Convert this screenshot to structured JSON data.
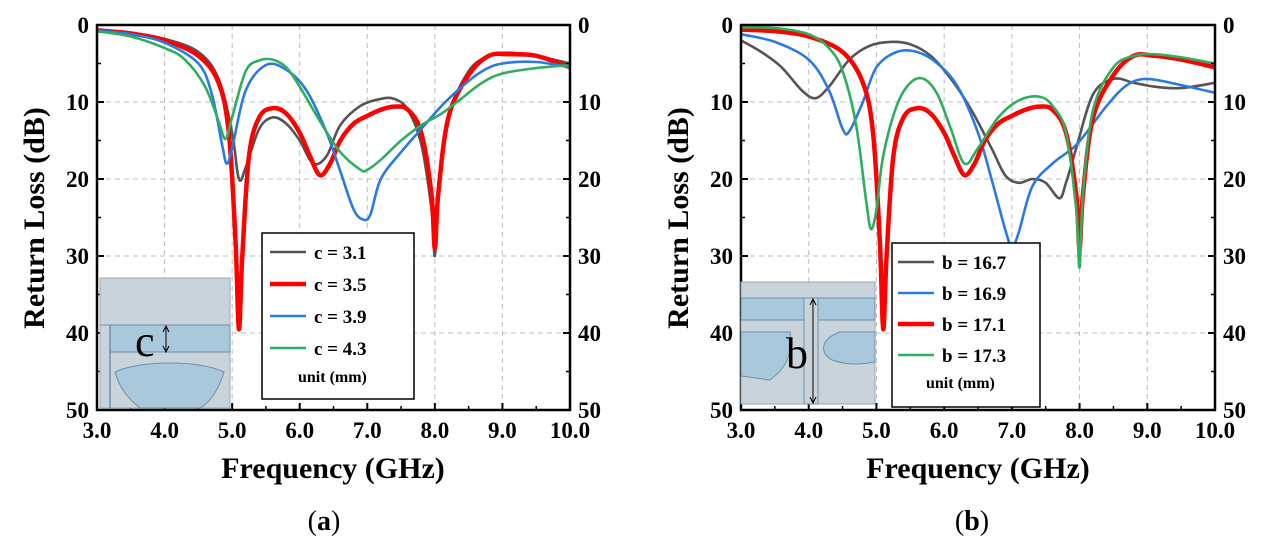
{
  "chart_data": [
    {
      "type": "line",
      "panel_label": "a",
      "xlabel": "Frequency (GHz)",
      "ylabel": "Return Loss (dB)",
      "xlim": [
        3.0,
        10.0
      ],
      "ylim": [
        0,
        50
      ],
      "y_inverted": true,
      "x_ticks": [
        "3.0",
        "4.0",
        "5.0",
        "6.0",
        "7.0",
        "8.0",
        "9.0",
        "10.0"
      ],
      "y_ticks": [
        "0",
        "10",
        "20",
        "30",
        "40",
        "50"
      ],
      "grid": true,
      "legend_position": "center-right",
      "legend_unit": "unit (mm)",
      "inset_label": "c",
      "series": [
        {
          "name": "c = 3.1",
          "color": "#555555",
          "x": [
            3.0,
            3.5,
            4.0,
            4.5,
            4.8,
            5.0,
            5.1,
            5.2,
            5.4,
            5.6,
            5.8,
            6.0,
            6.2,
            6.4,
            6.6,
            6.9,
            7.2,
            7.4,
            7.6,
            7.8,
            7.95,
            8.0,
            8.05,
            8.2,
            8.5,
            8.8,
            9.1,
            9.5,
            10.0
          ],
          "y": [
            0.6,
            1.0,
            1.8,
            3.5,
            7.0,
            14.0,
            20.0,
            18.5,
            13.5,
            12.0,
            12.8,
            15.0,
            18.0,
            17.0,
            13.0,
            10.5,
            9.6,
            9.6,
            11.0,
            15.5,
            24.0,
            30.0,
            22.0,
            12.0,
            6.0,
            4.0,
            3.6,
            4.0,
            5.0
          ]
        },
        {
          "name": "c = 3.5",
          "color": "#ff0000",
          "x": [
            3.0,
            3.5,
            4.0,
            4.5,
            4.8,
            4.95,
            5.05,
            5.1,
            5.15,
            5.25,
            5.4,
            5.6,
            5.8,
            6.0,
            6.15,
            6.3,
            6.45,
            6.6,
            6.8,
            7.0,
            7.2,
            7.4,
            7.6,
            7.8,
            7.95,
            8.0,
            8.05,
            8.2,
            8.5,
            8.8,
            9.1,
            9.5,
            10.0
          ],
          "y": [
            0.7,
            1.1,
            2.0,
            4.0,
            7.5,
            14.0,
            28.0,
            39.5,
            30.0,
            17.0,
            12.0,
            10.8,
            11.5,
            14.0,
            17.0,
            19.5,
            18.0,
            15.0,
            12.8,
            11.8,
            11.0,
            10.6,
            11.0,
            14.0,
            22.0,
            29.0,
            22.0,
            12.0,
            6.5,
            4.0,
            3.8,
            4.0,
            5.5
          ]
        },
        {
          "name": "c = 3.9",
          "color": "#2a7ae2",
          "x": [
            3.0,
            3.5,
            4.0,
            4.5,
            4.7,
            4.85,
            4.92,
            5.0,
            5.2,
            5.5,
            5.8,
            6.1,
            6.4,
            6.6,
            6.8,
            6.95,
            7.05,
            7.2,
            7.5,
            7.8,
            8.1,
            8.4,
            8.7,
            9.0,
            9.5,
            10.0
          ],
          "y": [
            0.7,
            1.2,
            2.3,
            5.0,
            9.0,
            15.5,
            18.0,
            16.0,
            8.5,
            5.2,
            5.8,
            8.5,
            14.0,
            19.0,
            24.0,
            25.3,
            24.5,
            20.0,
            16.5,
            13.5,
            10.5,
            8.0,
            6.0,
            5.0,
            4.8,
            5.5
          ]
        },
        {
          "name": "c = 4.3",
          "color": "#2fae5f",
          "x": [
            3.0,
            3.5,
            4.0,
            4.3,
            4.6,
            4.8,
            4.9,
            5.0,
            5.2,
            5.4,
            5.6,
            5.8,
            6.0,
            6.3,
            6.6,
            6.9,
            7.0,
            7.2,
            7.5,
            7.8,
            8.1,
            8.4,
            8.7,
            9.0,
            9.5,
            10.0
          ],
          "y": [
            0.8,
            1.5,
            3.0,
            4.5,
            8.0,
            12.5,
            14.8,
            12.0,
            6.0,
            4.6,
            4.5,
            5.5,
            8.0,
            12.5,
            16.5,
            18.8,
            18.8,
            17.5,
            15.0,
            13.0,
            11.5,
            9.5,
            7.5,
            6.3,
            5.6,
            5.2
          ]
        }
      ]
    },
    {
      "type": "line",
      "panel_label": "b",
      "xlabel": "Frequency (GHz)",
      "ylabel": "Return Loss (dB)",
      "xlim": [
        3.0,
        10.0
      ],
      "ylim": [
        0,
        50
      ],
      "y_inverted": true,
      "x_ticks": [
        "3.0",
        "4.0",
        "5.0",
        "6.0",
        "7.0",
        "8.0",
        "9.0",
        "10.0"
      ],
      "y_ticks": [
        "0",
        "10",
        "20",
        "30",
        "40",
        "50"
      ],
      "grid": true,
      "legend_position": "lower-center",
      "legend_unit": "unit (mm)",
      "inset_label": "b",
      "series": [
        {
          "name": "b = 16.7",
          "color": "#555555",
          "x": [
            3.0,
            3.3,
            3.6,
            3.9,
            4.1,
            4.3,
            4.6,
            4.9,
            5.2,
            5.5,
            5.8,
            6.1,
            6.4,
            6.7,
            6.9,
            7.1,
            7.3,
            7.5,
            7.7,
            7.8,
            7.95,
            8.2,
            8.5,
            8.8,
            9.1,
            9.5,
            10.0
          ],
          "y": [
            2.0,
            3.5,
            5.5,
            8.5,
            9.5,
            8.0,
            4.5,
            2.7,
            2.2,
            2.5,
            4.0,
            7.0,
            11.0,
            16.0,
            19.5,
            20.5,
            20.0,
            20.5,
            22.5,
            20.5,
            16.0,
            9.0,
            7.0,
            7.5,
            8.0,
            8.2,
            7.5
          ]
        },
        {
          "name": "b = 16.9",
          "color": "#2a7ae2",
          "x": [
            3.0,
            3.5,
            4.0,
            4.3,
            4.5,
            4.6,
            4.8,
            5.0,
            5.3,
            5.6,
            5.9,
            6.2,
            6.5,
            6.7,
            6.9,
            7.0,
            7.1,
            7.3,
            7.6,
            7.9,
            8.1,
            8.4,
            8.7,
            9.0,
            9.5,
            10.0
          ],
          "y": [
            1.2,
            2.2,
            4.5,
            8.5,
            13.5,
            13.8,
            10.0,
            5.5,
            3.5,
            3.5,
            5.0,
            8.0,
            14.0,
            20.0,
            26.5,
            28.8,
            27.0,
            21.0,
            18.0,
            16.0,
            14.0,
            10.5,
            7.8,
            7.0,
            7.8,
            8.8
          ]
        },
        {
          "name": "b = 17.1",
          "color": "#ff0000",
          "x": [
            3.0,
            3.5,
            4.0,
            4.5,
            4.8,
            4.95,
            5.05,
            5.1,
            5.15,
            5.25,
            5.4,
            5.6,
            5.8,
            6.0,
            6.15,
            6.3,
            6.45,
            6.6,
            6.8,
            7.0,
            7.2,
            7.4,
            7.6,
            7.8,
            7.95,
            8.0,
            8.05,
            8.2,
            8.5,
            8.8,
            9.1,
            9.5,
            10.0
          ],
          "y": [
            0.6,
            0.8,
            1.5,
            3.5,
            7.5,
            14.0,
            28.0,
            39.5,
            30.0,
            17.0,
            12.0,
            10.8,
            11.5,
            14.0,
            17.0,
            19.5,
            18.0,
            15.0,
            12.8,
            11.8,
            11.0,
            10.6,
            11.0,
            14.0,
            22.0,
            29.0,
            22.0,
            12.0,
            6.5,
            4.0,
            4.0,
            4.5,
            5.5
          ]
        },
        {
          "name": "b = 17.3",
          "color": "#2fae5f",
          "x": [
            3.0,
            3.5,
            4.0,
            4.3,
            4.5,
            4.7,
            4.85,
            4.92,
            5.0,
            5.1,
            5.3,
            5.5,
            5.7,
            5.9,
            6.1,
            6.3,
            6.5,
            6.8,
            7.1,
            7.4,
            7.6,
            7.8,
            7.95,
            8.0,
            8.05,
            8.2,
            8.5,
            8.8,
            9.1,
            9.5,
            10.0
          ],
          "y": [
            0.3,
            0.4,
            1.2,
            3.0,
            6.0,
            13.0,
            23.0,
            26.5,
            24.0,
            17.0,
            10.5,
            7.5,
            7.0,
            9.0,
            13.5,
            18.0,
            16.0,
            12.0,
            9.8,
            9.3,
            10.5,
            14.0,
            24.0,
            31.5,
            22.0,
            11.0,
            5.5,
            4.0,
            3.8,
            4.2,
            5.0
          ]
        }
      ]
    }
  ],
  "captions": {
    "a": "(a)",
    "b": "(b)"
  }
}
